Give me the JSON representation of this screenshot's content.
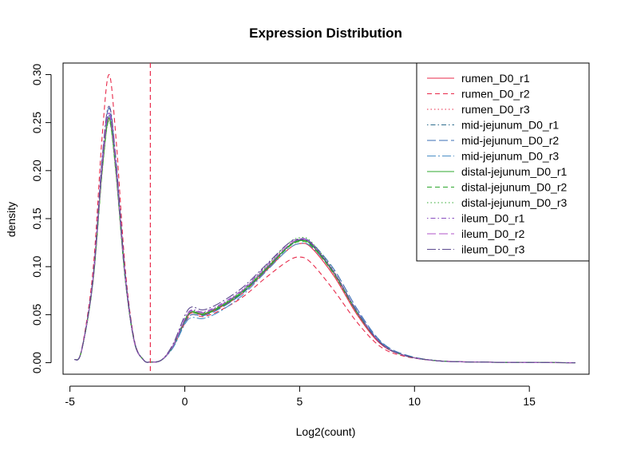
{
  "chart_data": {
    "type": "line",
    "title": "Expression Distribution",
    "xlabel": "Log2(count)",
    "ylabel": "density",
    "xlim": [
      -5.3,
      17.6
    ],
    "ylim": [
      -0.012,
      0.312
    ],
    "x_ticks": [
      -5,
      0,
      5,
      10,
      15
    ],
    "y_ticks": [
      0.0,
      0.05,
      0.1,
      0.15,
      0.2,
      0.25,
      0.3
    ],
    "x_tick_labels": [
      "-5",
      "0",
      "5",
      "10",
      "15"
    ],
    "y_tick_labels": [
      "0.00",
      "0.05",
      "0.10",
      "0.15",
      "0.20",
      "0.25",
      "0.30"
    ],
    "threshold_line": {
      "x": -1.5,
      "color": "#e8294a",
      "style": "dashed"
    },
    "legend_position": "top-right",
    "series": [
      {
        "name": "rumen_D0_r1",
        "color": "#e8294a",
        "dash": "solid",
        "x": [
          -4.8,
          -4.5,
          -4.0,
          -3.6,
          -3.3,
          -3.0,
          -2.6,
          -2.2,
          -1.8,
          -1.5,
          -1.0,
          -0.5,
          0.0,
          0.3,
          0.8,
          1.5,
          2.5,
          3.5,
          4.5,
          5.0,
          5.5,
          6.5,
          7.5,
          8.5,
          9.5,
          11.0,
          13.0,
          15.0,
          17.0
        ],
        "y": [
          0.003,
          0.012,
          0.085,
          0.2,
          0.255,
          0.2,
          0.09,
          0.022,
          0.003,
          0.0006,
          0.003,
          0.018,
          0.043,
          0.052,
          0.05,
          0.057,
          0.072,
          0.095,
          0.118,
          0.124,
          0.12,
          0.09,
          0.05,
          0.02,
          0.008,
          0.002,
          0.0006,
          0.0002,
          0.0
        ]
      },
      {
        "name": "rumen_D0_r2",
        "color": "#e8294a",
        "dash": "dashed",
        "x": [
          -4.8,
          -4.5,
          -4.0,
          -3.6,
          -3.3,
          -3.0,
          -2.6,
          -2.2,
          -1.8,
          -1.5,
          -1.0,
          -0.5,
          0.0,
          0.3,
          0.8,
          1.5,
          2.5,
          3.5,
          4.5,
          5.0,
          5.5,
          6.5,
          7.5,
          8.5,
          9.5,
          11.0,
          13.0,
          15.0,
          17.0
        ],
        "y": [
          0.003,
          0.013,
          0.095,
          0.235,
          0.3,
          0.235,
          0.1,
          0.024,
          0.003,
          0.0006,
          0.003,
          0.017,
          0.041,
          0.05,
          0.048,
          0.054,
          0.068,
          0.088,
          0.106,
          0.11,
          0.104,
          0.075,
          0.042,
          0.017,
          0.007,
          0.002,
          0.0006,
          0.0002,
          0.0
        ]
      },
      {
        "name": "rumen_D0_r3",
        "color": "#e8294a",
        "dash": "dotted",
        "x": [
          -4.8,
          -4.5,
          -4.0,
          -3.6,
          -3.3,
          -3.0,
          -2.6,
          -2.2,
          -1.8,
          -1.5,
          -1.0,
          -0.5,
          0.0,
          0.3,
          0.8,
          1.5,
          2.5,
          3.5,
          4.5,
          5.0,
          5.5,
          6.5,
          7.5,
          8.5,
          9.5,
          11.0,
          13.0,
          15.0,
          17.0
        ],
        "y": [
          0.003,
          0.012,
          0.084,
          0.198,
          0.252,
          0.198,
          0.089,
          0.022,
          0.003,
          0.0006,
          0.003,
          0.018,
          0.043,
          0.052,
          0.05,
          0.058,
          0.074,
          0.098,
          0.122,
          0.128,
          0.124,
          0.092,
          0.051,
          0.021,
          0.008,
          0.002,
          0.0006,
          0.0002,
          0.0
        ]
      },
      {
        "name": "mid-jejunum_D0_r1",
        "color": "#2e6e8e",
        "dash": "dotdash",
        "x": [
          -4.8,
          -4.5,
          -4.0,
          -3.6,
          -3.3,
          -3.0,
          -2.6,
          -2.2,
          -1.8,
          -1.5,
          -1.0,
          -0.5,
          0.0,
          0.3,
          0.8,
          1.5,
          2.5,
          3.5,
          4.5,
          5.0,
          5.5,
          6.5,
          7.5,
          8.5,
          9.5,
          11.0,
          13.0,
          15.0,
          17.0
        ],
        "y": [
          0.003,
          0.012,
          0.086,
          0.205,
          0.26,
          0.205,
          0.091,
          0.022,
          0.003,
          0.0006,
          0.003,
          0.018,
          0.044,
          0.053,
          0.051,
          0.058,
          0.073,
          0.096,
          0.12,
          0.127,
          0.123,
          0.094,
          0.053,
          0.022,
          0.008,
          0.002,
          0.0006,
          0.0002,
          0.0
        ]
      },
      {
        "name": "mid-jejunum_D0_r2",
        "color": "#3b6fb6",
        "dash": "longdash",
        "x": [
          -4.8,
          -4.5,
          -4.0,
          -3.6,
          -3.3,
          -3.0,
          -2.6,
          -2.2,
          -1.8,
          -1.5,
          -1.0,
          -0.5,
          0.0,
          0.3,
          0.8,
          1.5,
          2.5,
          3.5,
          4.5,
          5.0,
          5.5,
          6.5,
          7.5,
          8.5,
          9.5,
          11.0,
          13.0,
          15.0,
          17.0
        ],
        "y": [
          0.003,
          0.012,
          0.087,
          0.21,
          0.265,
          0.21,
          0.093,
          0.023,
          0.003,
          0.0006,
          0.003,
          0.017,
          0.042,
          0.05,
          0.049,
          0.056,
          0.072,
          0.096,
          0.121,
          0.128,
          0.125,
          0.097,
          0.056,
          0.023,
          0.009,
          0.002,
          0.0006,
          0.0002,
          0.0
        ]
      },
      {
        "name": "mid-jejunum_D0_r3",
        "color": "#4c8fc7",
        "dash": "longdotdash",
        "x": [
          -4.8,
          -4.5,
          -4.0,
          -3.6,
          -3.3,
          -3.0,
          -2.6,
          -2.2,
          -1.8,
          -1.5,
          -1.0,
          -0.5,
          0.0,
          0.3,
          0.8,
          1.5,
          2.5,
          3.5,
          4.5,
          5.0,
          5.5,
          6.5,
          7.5,
          8.5,
          9.5,
          11.0,
          13.0,
          15.0,
          17.0
        ],
        "y": [
          0.003,
          0.012,
          0.085,
          0.202,
          0.257,
          0.202,
          0.09,
          0.022,
          0.003,
          0.0006,
          0.003,
          0.016,
          0.04,
          0.047,
          0.046,
          0.053,
          0.07,
          0.094,
          0.118,
          0.124,
          0.121,
          0.093,
          0.054,
          0.022,
          0.008,
          0.002,
          0.0006,
          0.0002,
          0.0
        ]
      },
      {
        "name": "distal-jejunum_D0_r1",
        "color": "#2fa82f",
        "dash": "solid",
        "x": [
          -4.8,
          -4.5,
          -4.0,
          -3.6,
          -3.3,
          -3.0,
          -2.6,
          -2.2,
          -1.8,
          -1.5,
          -1.0,
          -0.5,
          0.0,
          0.3,
          0.8,
          1.5,
          2.5,
          3.5,
          4.5,
          5.0,
          5.5,
          6.5,
          7.5,
          8.5,
          9.5,
          11.0,
          13.0,
          15.0,
          17.0
        ],
        "y": [
          0.003,
          0.012,
          0.084,
          0.2,
          0.254,
          0.2,
          0.089,
          0.022,
          0.003,
          0.0006,
          0.003,
          0.018,
          0.044,
          0.053,
          0.051,
          0.058,
          0.074,
          0.097,
          0.121,
          0.127,
          0.123,
          0.093,
          0.052,
          0.021,
          0.008,
          0.002,
          0.0006,
          0.0002,
          0.0
        ]
      },
      {
        "name": "distal-jejunum_D0_r2",
        "color": "#2fa82f",
        "dash": "dashed",
        "x": [
          -4.8,
          -4.5,
          -4.0,
          -3.6,
          -3.3,
          -3.0,
          -2.6,
          -2.2,
          -1.8,
          -1.5,
          -1.0,
          -0.5,
          0.0,
          0.3,
          0.8,
          1.5,
          2.5,
          3.5,
          4.5,
          5.0,
          5.5,
          6.5,
          7.5,
          8.5,
          9.5,
          11.0,
          13.0,
          15.0,
          17.0
        ],
        "y": [
          0.003,
          0.012,
          0.083,
          0.198,
          0.252,
          0.198,
          0.088,
          0.022,
          0.003,
          0.0006,
          0.003,
          0.018,
          0.044,
          0.052,
          0.05,
          0.057,
          0.073,
          0.096,
          0.12,
          0.126,
          0.122,
          0.092,
          0.052,
          0.021,
          0.008,
          0.002,
          0.0006,
          0.0002,
          0.0
        ]
      },
      {
        "name": "distal-jejunum_D0_r3",
        "color": "#2fa82f",
        "dash": "dotted",
        "x": [
          -4.8,
          -4.5,
          -4.0,
          -3.6,
          -3.3,
          -3.0,
          -2.6,
          -2.2,
          -1.8,
          -1.5,
          -1.0,
          -0.5,
          0.0,
          0.3,
          0.8,
          1.5,
          2.5,
          3.5,
          4.5,
          5.0,
          5.5,
          6.5,
          7.5,
          8.5,
          9.5,
          11.0,
          13.0,
          15.0,
          17.0
        ],
        "y": [
          0.003,
          0.012,
          0.084,
          0.2,
          0.255,
          0.2,
          0.089,
          0.022,
          0.003,
          0.0006,
          0.003,
          0.018,
          0.045,
          0.054,
          0.052,
          0.059,
          0.075,
          0.099,
          0.124,
          0.13,
          0.126,
          0.095,
          0.053,
          0.021,
          0.008,
          0.002,
          0.0006,
          0.0002,
          0.0
        ]
      },
      {
        "name": "ileum_D0_r1",
        "color": "#8a4fc0",
        "dash": "dotdash",
        "x": [
          -4.8,
          -4.5,
          -4.0,
          -3.6,
          -3.3,
          -3.0,
          -2.6,
          -2.2,
          -1.8,
          -1.5,
          -1.0,
          -0.5,
          0.0,
          0.3,
          0.8,
          1.5,
          2.5,
          3.5,
          4.5,
          5.0,
          5.5,
          6.5,
          7.5,
          8.5,
          9.5,
          11.0,
          13.0,
          15.0,
          17.0
        ],
        "y": [
          0.003,
          0.012,
          0.085,
          0.203,
          0.258,
          0.203,
          0.09,
          0.022,
          0.003,
          0.0006,
          0.003,
          0.019,
          0.046,
          0.055,
          0.053,
          0.06,
          0.076,
          0.1,
          0.124,
          0.129,
          0.125,
          0.094,
          0.053,
          0.021,
          0.008,
          0.002,
          0.0006,
          0.0002,
          0.0
        ]
      },
      {
        "name": "ileum_D0_r2",
        "color": "#b054c9",
        "dash": "longdash",
        "x": [
          -4.8,
          -4.5,
          -4.0,
          -3.6,
          -3.3,
          -3.0,
          -2.6,
          -2.2,
          -1.8,
          -1.5,
          -1.0,
          -0.5,
          0.0,
          0.3,
          0.8,
          1.5,
          2.5,
          3.5,
          4.5,
          5.0,
          5.5,
          6.5,
          7.5,
          8.5,
          9.5,
          11.0,
          13.0,
          15.0,
          17.0
        ],
        "y": [
          0.003,
          0.012,
          0.086,
          0.205,
          0.26,
          0.205,
          0.091,
          0.022,
          0.003,
          0.0006,
          0.003,
          0.018,
          0.045,
          0.054,
          0.052,
          0.059,
          0.075,
          0.098,
          0.122,
          0.128,
          0.124,
          0.094,
          0.053,
          0.021,
          0.008,
          0.002,
          0.0006,
          0.0002,
          0.0
        ]
      },
      {
        "name": "ileum_D0_r3",
        "color": "#5d4a8f",
        "dash": "longdotdash",
        "x": [
          -4.8,
          -4.5,
          -4.0,
          -3.6,
          -3.3,
          -3.0,
          -2.6,
          -2.2,
          -1.8,
          -1.5,
          -1.0,
          -0.5,
          0.0,
          0.3,
          0.8,
          1.5,
          2.5,
          3.5,
          4.5,
          5.0,
          5.5,
          6.5,
          7.5,
          8.5,
          9.5,
          11.0,
          13.0,
          15.0,
          17.0
        ],
        "y": [
          0.003,
          0.012,
          0.088,
          0.212,
          0.267,
          0.212,
          0.094,
          0.023,
          0.003,
          0.0006,
          0.003,
          0.02,
          0.049,
          0.058,
          0.055,
          0.062,
          0.078,
          0.101,
          0.124,
          0.128,
          0.124,
          0.094,
          0.053,
          0.021,
          0.008,
          0.002,
          0.0006,
          0.0002,
          0.0
        ]
      }
    ]
  }
}
